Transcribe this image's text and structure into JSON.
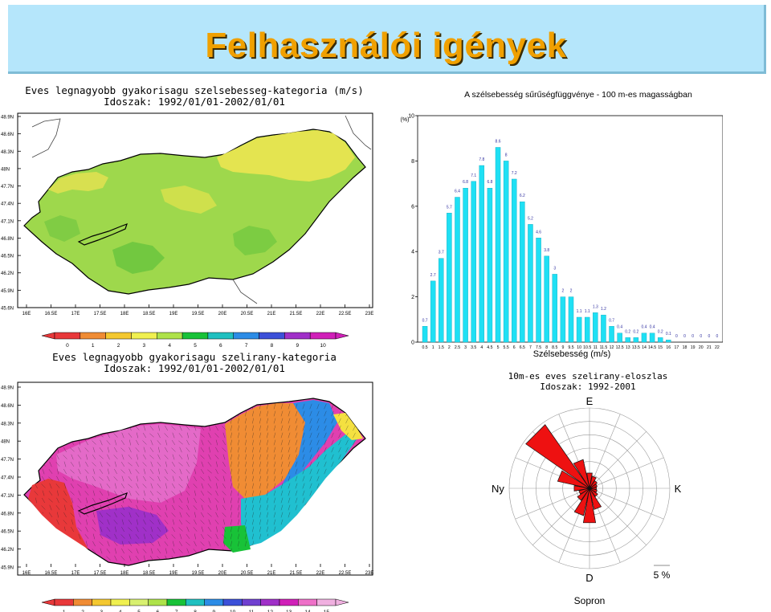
{
  "slide": {
    "title": "Felhasználói igények"
  },
  "map_speed": {
    "title_line1": "Eves legnagyobb gyakorisagu szelsebesseg-kategoria (m/s)",
    "title_line2": "Idoszak: 1992/01/01-2002/01/01",
    "lat_labels": [
      "48.9N",
      "48.6N",
      "48.3N",
      "48N",
      "47.7N",
      "47.4N",
      "47.1N",
      "46.8N",
      "46.5N",
      "46.2N",
      "45.9N",
      "45.6N"
    ],
    "lon_labels": [
      "16E",
      "16.5E",
      "17E",
      "17.5E",
      "18E",
      "18.5E",
      "19E",
      "19.5E",
      "20E",
      "20.5E",
      "21E",
      "21.5E",
      "22E",
      "22.5E",
      "23E"
    ],
    "colorbar_labels": [
      "0",
      "1",
      "2",
      "3",
      "4",
      "5",
      "6",
      "7",
      "8",
      "9",
      "10"
    ],
    "colorbar_colors": [
      "#e8383a",
      "#f08c34",
      "#f4c830",
      "#f0f050",
      "#aee24a",
      "#18c238",
      "#20c0c0",
      "#2c8ce6",
      "#3c50d8",
      "#a030c8",
      "#d020b8"
    ]
  },
  "map_direction": {
    "title_line1": "Eves legnagyobb gyakorisagu szelirany-kategoria",
    "title_line2": "Idoszak: 1992/01/01-2002/01/01",
    "lat_labels": [
      "48.9N",
      "48.6N",
      "48.3N",
      "48N",
      "47.7N",
      "47.4N",
      "47.1N",
      "46.8N",
      "46.5N",
      "46.2N",
      "45.9N"
    ],
    "lon_labels": [
      "16E",
      "16.5E",
      "17E",
      "17.5E",
      "18E",
      "18.5E",
      "19E",
      "19.5E",
      "20E",
      "20.5E",
      "21E",
      "21.5E",
      "22E",
      "22.5E",
      "23E"
    ],
    "colorbar_labels": [
      "1",
      "2",
      "3",
      "4",
      "5",
      "6",
      "7",
      "8",
      "9",
      "10",
      "11",
      "12",
      "13",
      "14",
      "15"
    ],
    "colorbar_colors": [
      "#e8383a",
      "#f08c34",
      "#f4c830",
      "#f0f050",
      "#d8f070",
      "#aee24a",
      "#18c238",
      "#20c0c0",
      "#2c8ce6",
      "#3c50d8",
      "#7040d0",
      "#a030c8",
      "#d020b8",
      "#ee70c8",
      "#f0b0e0"
    ]
  },
  "chart_data": [
    {
      "type": "bar",
      "title": "A szélsebesség sűrűségfüggvénye - 100 m-es magasságban",
      "xlabel": "Szélsebesség (m/s)",
      "ylabel": "(%)",
      "ylim": [
        0,
        10
      ],
      "yticks": [
        0,
        2,
        4,
        6,
        8,
        10
      ],
      "grid": false,
      "categories": [
        "0.5",
        "1",
        "1.5",
        "2",
        "2.5",
        "3",
        "3.5",
        "4",
        "4.5",
        "5",
        "5.5",
        "6",
        "6.5",
        "7",
        "7.5",
        "8",
        "8.5",
        "9",
        "9.5",
        "10",
        "10.5",
        "11",
        "11.5",
        "12",
        "12.5",
        "13",
        "13.5",
        "14",
        "14.5",
        "15",
        "16",
        "17",
        "18",
        "19",
        "20",
        "21",
        "22"
      ],
      "values": [
        0.7,
        2.7,
        3.7,
        5.7,
        6.4,
        6.8,
        7.1,
        7.8,
        6.8,
        8.6,
        8,
        7.2,
        6.2,
        5.2,
        4.6,
        3.8,
        3,
        2,
        2,
        1.1,
        1.1,
        1.3,
        1.2,
        0.7,
        0.4,
        0.2,
        0.2,
        0.4,
        0.4,
        0.2,
        0.1,
        0,
        0,
        0,
        0,
        0,
        0
      ],
      "value_labels": [
        "0.7",
        "2.7",
        "3.7",
        "5.7",
        "6.4",
        "6.8",
        "7.1",
        "7.8",
        "6.8",
        "8.6",
        "8",
        "7.2",
        "6.2",
        "5.2",
        "4.6",
        "3.8",
        "3",
        "2",
        "2",
        "1.1",
        "1.1",
        "1.3",
        "1.2",
        "0.7",
        "0.4",
        "0.2",
        "0.2",
        "0.4",
        "0.4",
        "0.2",
        "0.1",
        "0",
        "0",
        "0",
        "0",
        "0",
        "0"
      ],
      "bar_color": "#1fe0f4"
    },
    {
      "type": "rose",
      "title_line1": "10m-es eves szelirany-eloszlas",
      "title_line2": "Idoszak: 1992-2001",
      "station": "Sopron",
      "direction_labels": {
        "north": "E",
        "south": "D",
        "west": "Ny",
        "east": "K"
      },
      "scale_label": "5 %",
      "sectors": 16,
      "values_percent": [
        2,
        1.6,
        1.2,
        1,
        0.9,
        1,
        1.3,
        2.8,
        4.5,
        3.6,
        1.9,
        1.4,
        2,
        4.2,
        10,
        3.8
      ],
      "fill_color": "#ee1111"
    }
  ]
}
